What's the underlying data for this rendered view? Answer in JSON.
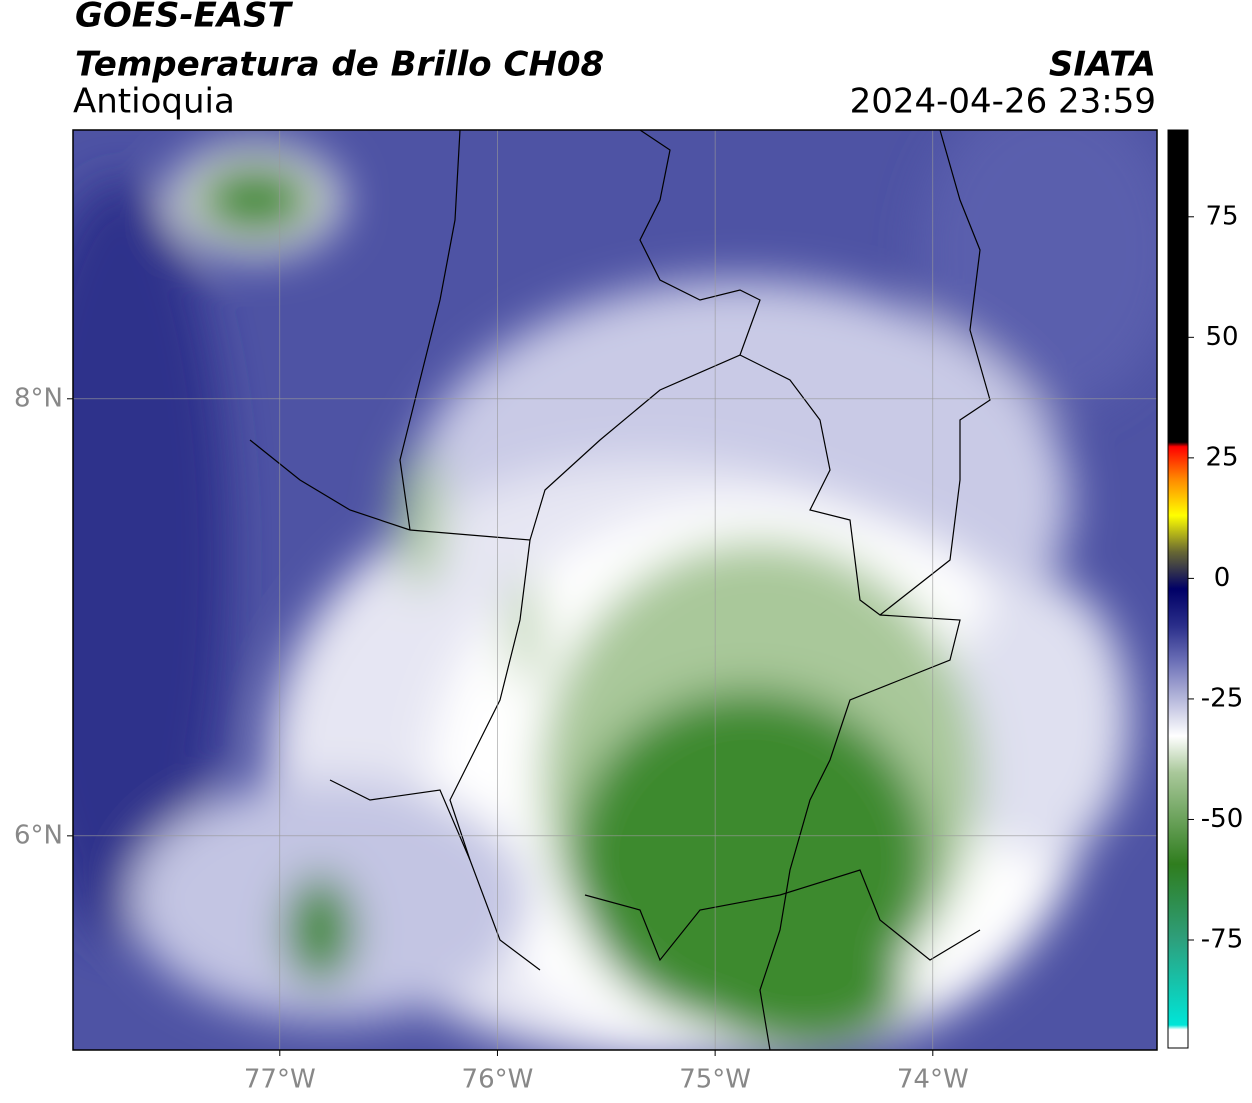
{
  "header": {
    "title": "GOES-EAST",
    "subtitle": "Temperatura de Brillo CH08",
    "region": "Antioquia",
    "source": "SIATA",
    "datetime": "2024-04-26 23:59"
  },
  "map": {
    "xlim": [
      -77.95,
      -72.97
    ],
    "ylim": [
      5.02,
      9.23
    ],
    "xticks": [
      {
        "value": -77,
        "label": "77°W"
      },
      {
        "value": -76,
        "label": "76°W"
      },
      {
        "value": -75,
        "label": "75°W"
      },
      {
        "value": -74,
        "label": "74°W"
      }
    ],
    "yticks": [
      {
        "value": 8,
        "label": "8°N"
      },
      {
        "value": 6,
        "label": "6°N"
      }
    ],
    "grid": true
  },
  "colorbar": {
    "lim": [
      -97.4,
      93
    ],
    "ticks": [
      75,
      50,
      25,
      0,
      -25,
      -50,
      -75
    ]
  }
}
